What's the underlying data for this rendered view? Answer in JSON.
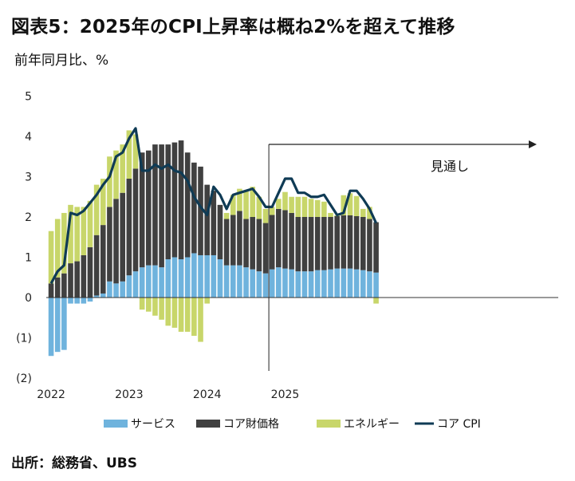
{
  "title": "図表5：2025年のCPI上昇率は概ね2%を超えて推移",
  "subtitle": "前年同月比、%",
  "source": "出所：総務省、UBS",
  "chart_data": {
    "type": "bar",
    "stacked": true,
    "x_start": "2022-01",
    "x_tick_labels": [
      "2022",
      "2023",
      "2024",
      "2025"
    ],
    "y_tick_labels": [
      "5",
      "4",
      "3",
      "2",
      "1",
      "0",
      "(1)",
      "(2)"
    ],
    "ylim": [
      -2,
      5
    ],
    "grid": false,
    "legend_position": "bottom",
    "annotation": {
      "label": "見通し",
      "from": "2024-11"
    },
    "colors": {
      "services": "#6fb3dd",
      "core_goods": "#404040",
      "energy": "#c8d66a",
      "core_cpi": "#0f3b55"
    },
    "series": [
      {
        "name": "サービス",
        "kind": "bar",
        "values": [
          -1.45,
          -1.35,
          -1.3,
          -0.15,
          -0.15,
          -0.15,
          -0.1,
          0.05,
          0.1,
          0.4,
          0.35,
          0.4,
          0.55,
          0.65,
          0.75,
          0.8,
          0.8,
          0.75,
          0.95,
          1.0,
          0.95,
          1.0,
          1.1,
          1.05,
          1.05,
          1.05,
          0.95,
          0.8,
          0.8,
          0.8,
          0.75,
          0.7,
          0.65,
          0.6,
          0.7,
          0.75,
          0.72,
          0.7,
          0.65,
          0.65,
          0.65,
          0.68,
          0.68,
          0.7,
          0.72,
          0.72,
          0.72,
          0.7,
          0.68,
          0.65,
          0.62
        ]
      },
      {
        "name": "コア財価格",
        "kind": "bar",
        "values": [
          0.35,
          0.5,
          0.6,
          0.85,
          0.9,
          1.05,
          1.25,
          1.5,
          1.7,
          1.85,
          2.1,
          2.2,
          2.4,
          2.55,
          2.85,
          2.85,
          3.0,
          3.05,
          2.85,
          2.85,
          2.95,
          2.6,
          2.25,
          2.2,
          1.75,
          1.6,
          1.35,
          1.15,
          1.25,
          1.35,
          1.2,
          1.3,
          1.3,
          1.25,
          1.35,
          1.45,
          1.45,
          1.4,
          1.35,
          1.35,
          1.35,
          1.32,
          1.32,
          1.3,
          1.3,
          1.32,
          1.32,
          1.32,
          1.32,
          1.3,
          1.25
        ]
      },
      {
        "name": "エネルギー",
        "kind": "bar",
        "values": [
          1.3,
          1.45,
          1.5,
          1.45,
          1.35,
          1.2,
          1.15,
          1.25,
          1.15,
          1.25,
          1.2,
          1.2,
          1.2,
          0.85,
          -0.3,
          -0.35,
          -0.45,
          -0.55,
          -0.7,
          -0.75,
          -0.85,
          -0.85,
          -0.95,
          -1.1,
          -0.15,
          0.0,
          0.0,
          0.15,
          0.5,
          0.55,
          0.7,
          0.75,
          0.55,
          0.35,
          0.2,
          0.25,
          0.45,
          0.4,
          0.5,
          0.5,
          0.45,
          0.42,
          0.38,
          0.1,
          0.02,
          0.5,
          0.55,
          0.5,
          0.2,
          0.3,
          -0.15
        ]
      },
      {
        "name": "コア CPI",
        "kind": "line",
        "values": [
          0.35,
          0.65,
          0.8,
          2.1,
          2.05,
          2.15,
          2.35,
          2.55,
          2.8,
          3.0,
          3.5,
          3.6,
          3.95,
          4.2,
          3.15,
          3.15,
          3.3,
          3.2,
          3.3,
          3.15,
          3.1,
          2.9,
          2.5,
          2.25,
          2.05,
          2.75,
          2.55,
          2.2,
          2.55,
          2.6,
          2.65,
          2.7,
          2.5,
          2.25,
          2.25,
          2.6,
          2.95,
          2.95,
          2.6,
          2.6,
          2.5,
          2.5,
          2.55,
          2.3,
          2.05,
          2.1,
          2.65,
          2.65,
          2.45,
          2.2,
          1.85
        ]
      }
    ]
  }
}
